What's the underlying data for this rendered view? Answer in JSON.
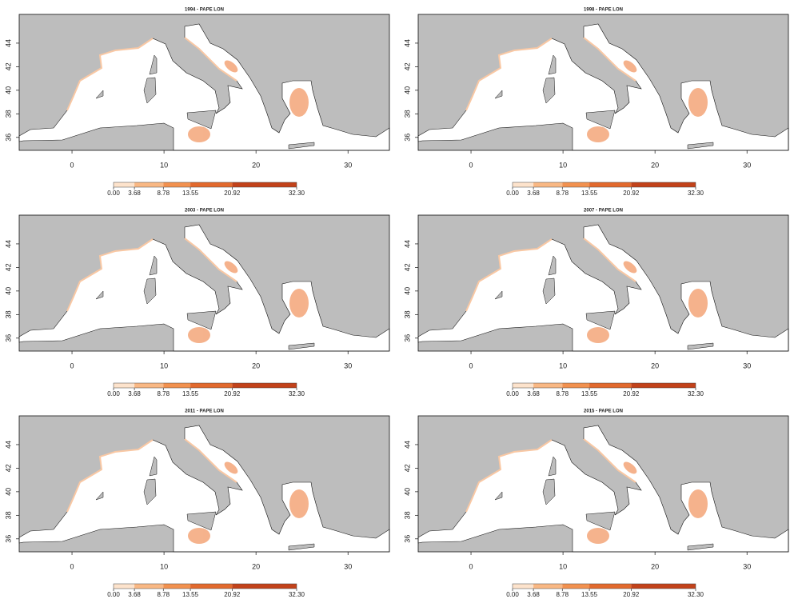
{
  "panels": [
    {
      "title": "1994 - PAPE LON",
      "xlim": [
        -5.74,
        34.5
      ],
      "ylim": [
        34.9,
        46.44
      ],
      "xticks": [
        0,
        10,
        20,
        30
      ],
      "yticks": [
        36,
        38,
        40,
        42,
        44
      ],
      "colorbar": {
        "lim": [
          0,
          32.3
        ],
        "colors": [
          "#fde3cc",
          "#f9b884",
          "#f2914f",
          "#e2692d",
          "#c2421a"
        ],
        "ticks": [
          {
            "value": 0,
            "label": "0.00"
          },
          {
            "value": 3.68,
            "label": "3.68"
          },
          {
            "value": 8.78,
            "label": "8.78"
          },
          {
            "value": 13.55,
            "label": "13.55"
          },
          {
            "value": 20.92,
            "label": "20.92"
          },
          {
            "value": 32.3,
            "label": "32.30"
          }
        ]
      }
    },
    {
      "title": "1998 - PAPE LON",
      "xlim": [
        -5.74,
        34.5
      ],
      "ylim": [
        34.9,
        46.44
      ],
      "xticks": [
        0,
        10,
        20,
        30
      ],
      "yticks": [
        36,
        38,
        40,
        42,
        44
      ],
      "colorbar": {
        "lim": [
          0,
          32.3
        ],
        "colors": [
          "#fde3cc",
          "#f9b884",
          "#f2914f",
          "#e2692d",
          "#c2421a"
        ],
        "ticks": [
          {
            "value": 0,
            "label": "0.00"
          },
          {
            "value": 3.68,
            "label": "3.68"
          },
          {
            "value": 8.78,
            "label": "8.78"
          },
          {
            "value": 13.55,
            "label": "13.55"
          },
          {
            "value": 20.92,
            "label": "20.92"
          },
          {
            "value": 32.3,
            "label": "32.30"
          }
        ]
      }
    },
    {
      "title": "2003 - PAPE LON",
      "xlim": [
        -5.74,
        34.5
      ],
      "ylim": [
        34.9,
        46.44
      ],
      "xticks": [
        0,
        10,
        20,
        30
      ],
      "yticks": [
        36,
        38,
        40,
        42,
        44
      ],
      "colorbar": {
        "lim": [
          0,
          32.3
        ],
        "colors": [
          "#fde3cc",
          "#f9b884",
          "#f2914f",
          "#e2692d",
          "#c2421a"
        ],
        "ticks": [
          {
            "value": 0,
            "label": "0.00"
          },
          {
            "value": 3.68,
            "label": "3.68"
          },
          {
            "value": 8.78,
            "label": "8.78"
          },
          {
            "value": 13.55,
            "label": "13.55"
          },
          {
            "value": 20.92,
            "label": "20.92"
          },
          {
            "value": 32.3,
            "label": "32.30"
          }
        ]
      }
    },
    {
      "title": "2007 - PAPE LON",
      "xlim": [
        -5.74,
        34.5
      ],
      "ylim": [
        34.9,
        46.44
      ],
      "xticks": [
        0,
        10,
        20,
        30
      ],
      "yticks": [
        36,
        38,
        40,
        42,
        44
      ],
      "colorbar": {
        "lim": [
          0,
          32.3
        ],
        "colors": [
          "#fde3cc",
          "#f9b884",
          "#f2914f",
          "#e2692d",
          "#c2421a"
        ],
        "ticks": [
          {
            "value": 0,
            "label": "0.00"
          },
          {
            "value": 3.68,
            "label": "3.68"
          },
          {
            "value": 8.78,
            "label": "8.78"
          },
          {
            "value": 13.55,
            "label": "13.55"
          },
          {
            "value": 20.92,
            "label": "20.92"
          },
          {
            "value": 32.3,
            "label": "32.30"
          }
        ]
      }
    },
    {
      "title": "2011 - PAPE LON",
      "xlim": [
        -5.74,
        34.5
      ],
      "ylim": [
        34.9,
        46.44
      ],
      "xticks": [
        0,
        10,
        20,
        30
      ],
      "yticks": [
        36,
        38,
        40,
        42,
        44
      ],
      "colorbar": {
        "lim": [
          0,
          32.3
        ],
        "colors": [
          "#fde3cc",
          "#f9b884",
          "#f2914f",
          "#e2692d",
          "#c2421a"
        ],
        "ticks": [
          {
            "value": 0,
            "label": "0.00"
          },
          {
            "value": 3.68,
            "label": "3.68"
          },
          {
            "value": 8.78,
            "label": "8.78"
          },
          {
            "value": 13.55,
            "label": "13.55"
          },
          {
            "value": 20.92,
            "label": "20.92"
          },
          {
            "value": 32.3,
            "label": "32.30"
          }
        ]
      }
    },
    {
      "title": "2015 - PAPE LON",
      "xlim": [
        -5.74,
        34.5
      ],
      "ylim": [
        34.9,
        46.44
      ],
      "xticks": [
        0,
        10,
        20,
        30
      ],
      "yticks": [
        36,
        38,
        40,
        42,
        44
      ],
      "colorbar": {
        "lim": [
          0,
          32.3
        ],
        "colors": [
          "#fde3cc",
          "#f9b884",
          "#f2914f",
          "#e2692d",
          "#c2421a"
        ],
        "ticks": [
          {
            "value": 0,
            "label": "0.00"
          },
          {
            "value": 3.68,
            "label": "3.68"
          },
          {
            "value": 8.78,
            "label": "8.78"
          },
          {
            "value": 13.55,
            "label": "13.55"
          },
          {
            "value": 20.92,
            "label": "20.92"
          },
          {
            "value": 32.3,
            "label": "32.30"
          }
        ]
      }
    }
  ]
}
